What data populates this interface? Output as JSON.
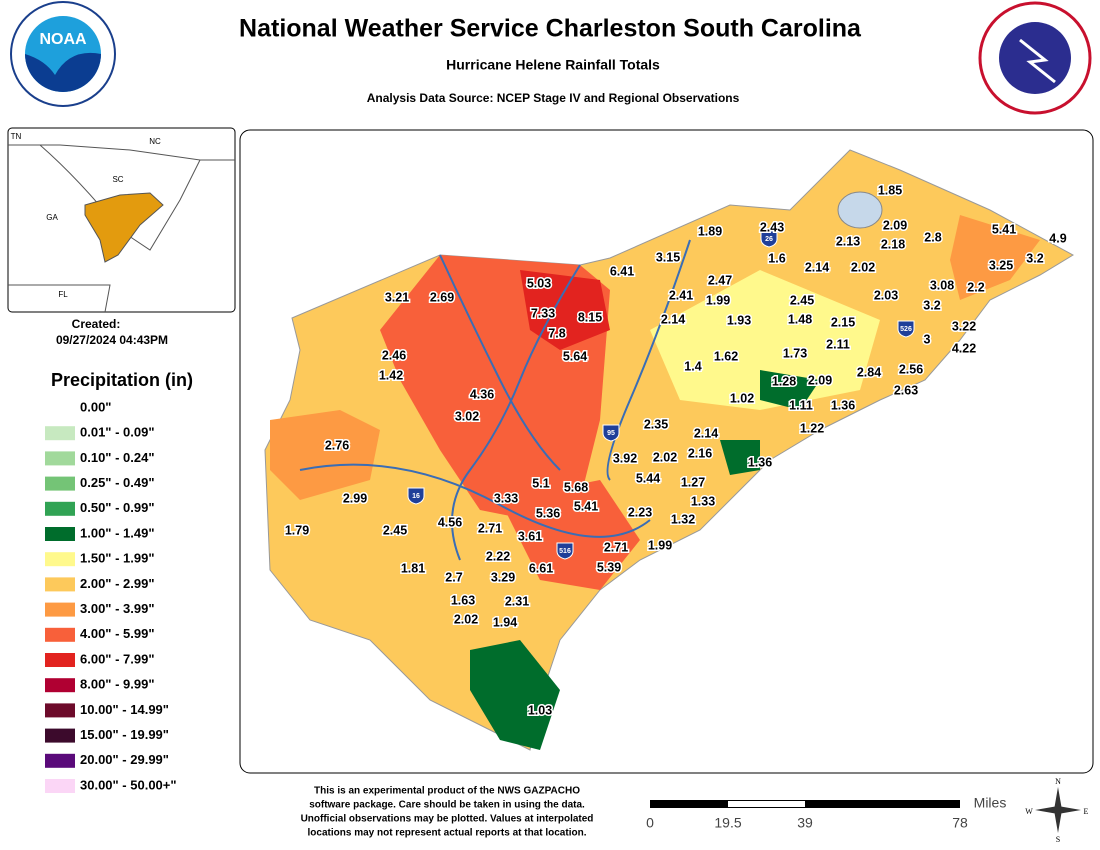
{
  "header": {
    "title": "National Weather Service Charleston South Carolina",
    "subtitle": "Hurricane Helene Rainfall Totals",
    "source": "Analysis Data Source: NCEP Stage IV and Regional Observations",
    "logo": "NOAA"
  },
  "inset": {
    "labels": [
      "TN",
      "NC",
      "SC",
      "GA",
      "FL"
    ]
  },
  "created": {
    "label": "Created:",
    "date": "09/27/2024 04:43PM"
  },
  "legend": {
    "title": "Precipitation (in)",
    "items": [
      {
        "label": "0.00\"",
        "color": "#ffffff"
      },
      {
        "label": "0.01\" - 0.09\"",
        "color": "#c7e9c0"
      },
      {
        "label": "0.10\" - 0.24\"",
        "color": "#a1d99b"
      },
      {
        "label": "0.25\" - 0.49\"",
        "color": "#74c476"
      },
      {
        "label": "0.50\" - 0.99\"",
        "color": "#31a354"
      },
      {
        "label": "1.00\" - 1.49\"",
        "color": "#006d2c"
      },
      {
        "label": "1.50\" - 1.99\"",
        "color": "#fff98c"
      },
      {
        "label": "2.00\" - 2.99\"",
        "color": "#fdc95b"
      },
      {
        "label": "3.00\" - 3.99\"",
        "color": "#fd9a43"
      },
      {
        "label": "4.00\" - 5.99\"",
        "color": "#f8603a"
      },
      {
        "label": "6.00\" - 7.99\"",
        "color": "#e2231f"
      },
      {
        "label": "8.00\" - 9.99\"",
        "color": "#b00032"
      },
      {
        "label": "10.00\" - 14.99\"",
        "color": "#6d0a2a"
      },
      {
        "label": "15.00\" - 19.99\"",
        "color": "#3c0a2c"
      },
      {
        "label": "20.00\" - 29.99\"",
        "color": "#5a0a7a"
      },
      {
        "label": "30.00\" - 50.00+\"",
        "color": "#fbd6f6"
      }
    ]
  },
  "map": {
    "interstates": [
      "26",
      "526",
      "95",
      "16",
      "516"
    ],
    "values": [
      1.85,
      1.89,
      2.43,
      2.09,
      2.13,
      2.18,
      2.8,
      5.41,
      4.9,
      3.15,
      1.6,
      2.14,
      2.02,
      3.25,
      3.2,
      6.41,
      5.03,
      2.47,
      3.08,
      2.2,
      3.21,
      2.69,
      2.41,
      1.99,
      2.45,
      2.03,
      3.2,
      7.33,
      8.15,
      2.14,
      1.93,
      1.48,
      2.15,
      3.22,
      7.8,
      2.11,
      3,
      4.22,
      5.64,
      1.62,
      1.73,
      2.46,
      1.4,
      2.56,
      2.84,
      1.42,
      1.28,
      2.09,
      2.63,
      4.36,
      1.02,
      1.11,
      1.36,
      3.02,
      2.35,
      1.22,
      2.14,
      2.76,
      2.16,
      3.92,
      2.02,
      1.36,
      5.44,
      1.27,
      5.1,
      5.68,
      2.99,
      3.33,
      1.33,
      5.41,
      5.36,
      2.23,
      1.32,
      1.79,
      2.45,
      4.56,
      2.71,
      3.61,
      2.71,
      1.99,
      2.22,
      1.81,
      6.61,
      5.39,
      2.7,
      3.29,
      1.63,
      2.31,
      2.02,
      1.94,
      1.03
    ]
  },
  "footer": {
    "disclaimer": [
      "This is an experimental product of the NWS GAZPACHO",
      "software package. Care should be taken in using the data.",
      "Unofficial observations may be plotted. Values at interpolated",
      "locations may not represent actual reports at that location."
    ],
    "scale": {
      "labels": [
        "0",
        "19.5",
        "39",
        "78"
      ],
      "unit": "Miles"
    },
    "compass": [
      "N",
      "E",
      "S",
      "W"
    ]
  }
}
